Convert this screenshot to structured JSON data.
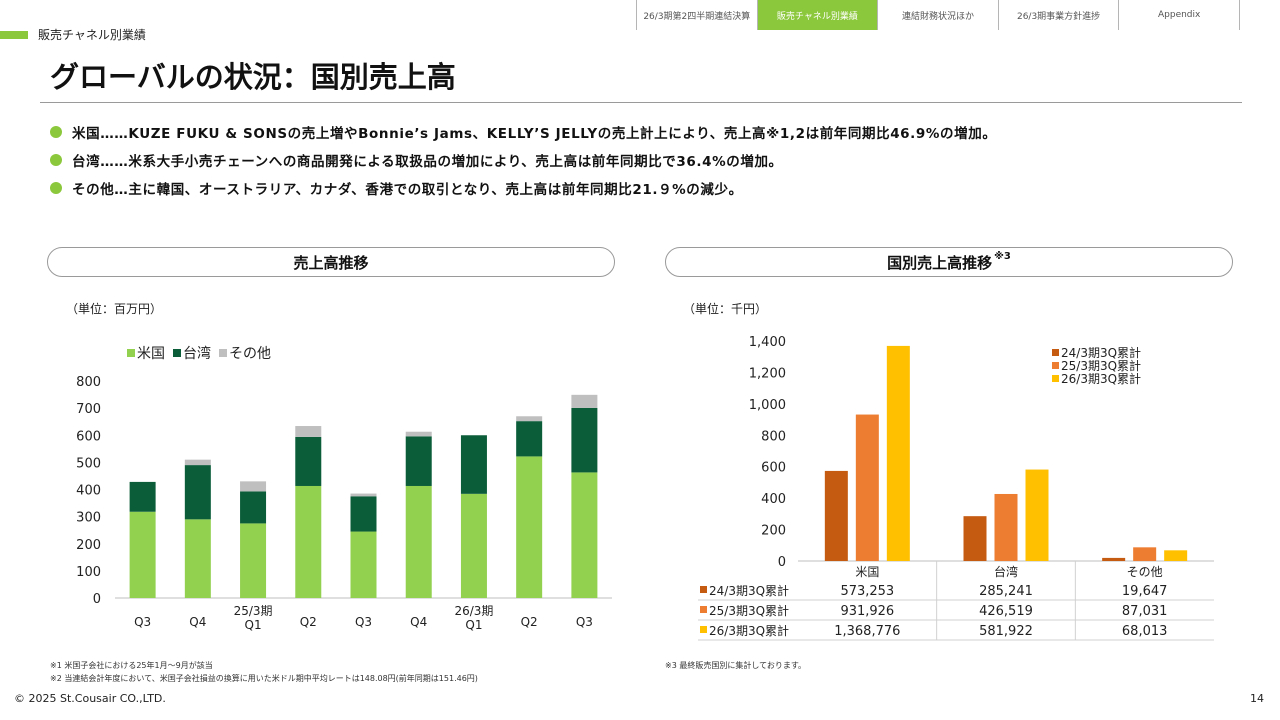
{
  "nav": {
    "tabs": [
      {
        "label": "26/3期第2四半期連結決算",
        "active": false
      },
      {
        "label": "販売チャネル別業績",
        "active": true
      },
      {
        "label": "連結財務状況ほか",
        "active": false
      },
      {
        "label": "26/3期事業方針進捗",
        "active": false
      },
      {
        "label": "Appendix",
        "active": false
      }
    ]
  },
  "section_label": "販売チャネル別業績",
  "page_title": "グローバルの状況：国別売上高",
  "bullets": [
    "米国……KUZE FUKU & SONSの売上増やBonnie’s Jams、KELLY’S JELLYの売上計上により、売上高※1,2は前年同期比46.9%の増加。",
    "台湾……米系大手小売チェーンへの商品開発による取扱品の増加により、売上高は前年同期比で36.4%の増加。",
    "その他…主に韓国、オーストラリア、カナダ、香港での取引となり、売上高は前年同期比21.９%の減少。"
  ],
  "left_panel": {
    "title": "売上高推移",
    "unit": "（単位：百万円）"
  },
  "right_panel": {
    "title": "国別売上高推移",
    "title_sup": "※3",
    "unit": "（単位：千円）"
  },
  "chart_data": [
    {
      "type": "bar",
      "stacked": true,
      "categories": [
        "Q3",
        "Q4",
        "25/3期 Q1",
        "Q2",
        "Q3",
        "Q4",
        "26/3期 Q1",
        "Q2",
        "Q3"
      ],
      "series": [
        {
          "name": "米国",
          "color": "#92d050",
          "values": [
            318,
            290,
            275,
            413,
            245,
            413,
            384,
            522,
            463
          ]
        },
        {
          "name": "台湾",
          "color": "#0b5d3a",
          "values": [
            110,
            200,
            118,
            181,
            130,
            183,
            216,
            130,
            238
          ]
        },
        {
          "name": "その他",
          "color": "#bfbfbf",
          "values": [
            0,
            20,
            37,
            40,
            10,
            17,
            0,
            18,
            48
          ]
        }
      ],
      "ylim": [
        0,
        800
      ],
      "yticks": [
        0,
        100,
        200,
        300,
        400,
        500,
        600,
        700,
        800
      ],
      "legend": "top-left",
      "grid": false
    },
    {
      "type": "bar",
      "categories": [
        "米国",
        "台湾",
        "その他"
      ],
      "series": [
        {
          "name": "24/3期3Q累計",
          "color": "#c55a11",
          "values": [
            573253,
            285241,
            19647
          ],
          "labels": [
            "573,253",
            "285,241",
            "19,647"
          ]
        },
        {
          "name": "25/3期3Q累計",
          "color": "#ed7d31",
          "values": [
            931926,
            426519,
            87031
          ],
          "labels": [
            "931,926",
            "426,519",
            "87,031"
          ]
        },
        {
          "name": "26/3期3Q累計",
          "color": "#ffc000",
          "values": [
            1368776,
            581922,
            68013
          ],
          "labels": [
            "1,368,776",
            "581,922",
            "68,013"
          ]
        }
      ],
      "ylim": [
        0,
        1400
      ],
      "yticks": [
        "0",
        "200",
        "400",
        "600",
        "800",
        "1,000",
        "1,200",
        "1,400"
      ],
      "legend": "top-right",
      "grid": false,
      "data_table": true
    }
  ],
  "notes": {
    "left": [
      "※1  米国子会社における25年1月〜9月が該当",
      "※2  当連結会計年度において、米国子会社損益の換算に用いた米ドル期中平均レートは148.08円(前年同期は151.46円)"
    ],
    "right": "※3  最終販売国別に集計しております。"
  },
  "footer": {
    "copyright": "© 2025 St.Cousair CO.,LTD.",
    "page": "14"
  }
}
